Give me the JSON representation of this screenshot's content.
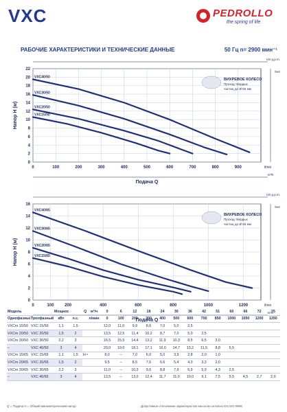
{
  "header": {
    "title": "VXC",
    "logo_text": "PEDROLLO",
    "logo_slogan": "the spring of life"
  },
  "section": {
    "title": "РАБОЧИЕ ХАРАКТЕРИСТИКИ И ТЕХНИЧЕСКИЕ ДАННЫЕ",
    "meta": "50 Гц   n= 2900 мин⁻¹"
  },
  "chart_data": [
    {
      "type": "line",
      "title": "",
      "ylabel": "Напор H (м)",
      "ylabel_right": "feet",
      "xlabel": "Подача Q",
      "x_unit": "l/min",
      "top_axis_unit": "US g.p.m.",
      "bottom_axis_unit": "m³/h",
      "xlim": [
        0,
        1000
      ],
      "ylim": [
        0,
        22
      ],
      "x_ticks": [
        0,
        100,
        200,
        300,
        400,
        500,
        600,
        700,
        800,
        900
      ],
      "y_ticks": [
        0,
        2,
        4,
        6,
        8,
        10,
        12,
        14,
        16,
        18,
        20,
        22
      ],
      "annotation": [
        "ВИХРЕВОЕ КОЛЕСО",
        "Проход твердых",
        "частиц до Ø 50 мм"
      ],
      "series": [
        {
          "name": "VXC40/50",
          "x": [
            0,
            200,
            400,
            600,
            800,
            950
          ],
          "y": [
            19.5,
            17.2,
            14,
            10,
            5.5,
            2.3
          ]
        },
        {
          "name": "VXC30/50",
          "x": [
            0,
            200,
            400,
            600,
            750,
            850
          ],
          "y": [
            15.8,
            13.3,
            10.2,
            6.5,
            3.5,
            1.8
          ]
        },
        {
          "name": "VXC20/50",
          "x": [
            0,
            200,
            400,
            550,
            650,
            700
          ],
          "y": [
            12.4,
            10.2,
            7.4,
            5,
            3,
            2
          ]
        },
        {
          "name": "VXC15/50",
          "x": [
            0,
            150,
            300,
            450,
            550,
            600
          ],
          "y": [
            10.6,
            9,
            6.9,
            4.5,
            2.7,
            2
          ]
        }
      ]
    },
    {
      "type": "line",
      "title": "",
      "ylabel": "Напор H (м)",
      "ylabel_right": "feet",
      "xlabel": "Подача Q",
      "x_unit": "l/min",
      "top_axis_unit": "US g.p.m.",
      "bottom_axis_unit": "m³/h",
      "xlim": [
        0,
        1300
      ],
      "ylim": [
        0,
        16
      ],
      "x_ticks": [
        0,
        100,
        200,
        400,
        600,
        800,
        1000,
        1200
      ],
      "y_ticks": [
        0,
        2,
        4,
        6,
        8,
        10,
        12,
        14,
        16
      ],
      "annotation": [
        "ВИХРЕВОЕ КОЛЕСО",
        "Проход твердых",
        "частиц до Ø 65 мм"
      ],
      "series": [
        {
          "name": "VXC40/65",
          "x": [
            0,
            300,
            600,
            900,
            1100,
            1250
          ],
          "y": [
            14.6,
            11.5,
            8.2,
            5,
            3,
            2
          ]
        },
        {
          "name": "VXC30/65",
          "x": [
            0,
            250,
            500,
            750,
            900,
            1000
          ],
          "y": [
            11.5,
            8.8,
            6,
            3.6,
            2.3,
            1.5
          ]
        },
        {
          "name": "VXC20/65",
          "x": [
            0,
            200,
            400,
            600,
            800,
            900
          ],
          "y": [
            8.7,
            6.9,
            5,
            3.4,
            2.1,
            1.4
          ]
        },
        {
          "name": "VXC15/65",
          "x": [
            0,
            200,
            400,
            600,
            800,
            850
          ],
          "y": [
            7,
            5.6,
            3.9,
            2.5,
            1.4,
            1
          ]
        }
      ]
    }
  ],
  "table": {
    "header_row1": [
      "Модель",
      "",
      "Мощность (P2)",
      "",
      "Q",
      "м³/ч",
      "0",
      "6",
      "12",
      "18",
      "24",
      "30",
      "36",
      "42",
      "51",
      "60",
      "66",
      "72",
      "75"
    ],
    "header_row2": [
      "Однофазный",
      "Трехфазный",
      "кВт",
      "л.с.",
      "",
      "л/мин",
      "0",
      "100",
      "200",
      "300",
      "400",
      "500",
      "600",
      "700",
      "850",
      "1000",
      "1050",
      "1200",
      "1250"
    ],
    "h_label": "H = м",
    "rows": [
      {
        "mono": "VXCm 15/50",
        "tri": "VXC 15/50",
        "kw": "1,1",
        "hp": "1,5",
        "vals": [
          "12,0",
          "11,0",
          "9,9",
          "8,6",
          "7,0",
          "5,0",
          "2,5",
          "",
          "",
          "",
          "",
          "",
          ""
        ]
      },
      {
        "mono": "VXCm 20/50",
        "tri": "VXC 20/50",
        "kw": "1,5",
        "hp": "2",
        "vals": [
          "13,5",
          "12,5",
          "11,4",
          "10,2",
          "8,7",
          "7,0",
          "5,0",
          "2,5",
          "",
          "",
          "",
          "",
          ""
        ]
      },
      {
        "mono": "VXCm 30/50",
        "tri": "VXC 30/50",
        "kw": "2,2",
        "hp": "3",
        "vals": [
          "16,5",
          "15,5",
          "14,4",
          "13,2",
          "11,9",
          "10,3",
          "8,5",
          "6,5",
          "3,0",
          "",
          "",
          "",
          ""
        ]
      },
      {
        "mono": "–",
        "tri": "VXC 40/50",
        "kw": "3",
        "hp": "4",
        "vals": [
          "20,0",
          "19,0",
          "18,1",
          "17,1",
          "16,0",
          "14,7",
          "13,2",
          "11,5",
          "8,8",
          "5,5",
          "",
          "",
          ""
        ]
      },
      {
        "mono": "VXCm 15/65",
        "tri": "VXC 15/65",
        "kw": "1,1",
        "hp": "1,5",
        "vals": [
          "8,0",
          "–",
          "7,0",
          "6,0",
          "5,0",
          "3,9",
          "2,8",
          "2,0",
          "1,0",
          "",
          "",
          "",
          ""
        ]
      },
      {
        "mono": "VXCm 20/65",
        "tri": "VXC 20/65",
        "kw": "1,5",
        "hp": "2",
        "vals": [
          "9,5",
          "–",
          "8,5",
          "7,6",
          "6,6",
          "5,4",
          "4,3",
          "3,3",
          "2,0",
          "",
          "",
          "",
          ""
        ]
      },
      {
        "mono": "VXCm 30/65",
        "tri": "VXC 30/65",
        "kw": "2,2",
        "hp": "3",
        "vals": [
          "11,0",
          "–",
          "10,3",
          "9,6",
          "8,8",
          "7,9",
          "6,9",
          "5,9",
          "4,3",
          "2,5",
          "",
          "",
          ""
        ]
      },
      {
        "mono": "–",
        "tri": "VXC 40/65",
        "kw": "3",
        "hp": "4",
        "vals": [
          "13,5",
          "–",
          "13,0",
          "12,4",
          "11,7",
          "11,0",
          "10,0",
          "9,1",
          "7,5",
          "5,5",
          "4,5",
          "2,7",
          "2,0"
        ]
      }
    ],
    "footnote_left": "Q = Подача   H = Общий манометрический напор",
    "footnote_right": "Допустимое отклонение характеристик насосов согласно ЕN ISO 9906"
  },
  "colors": {
    "curve": "#1f2f79",
    "accent": "#d2232a",
    "grid": "#c7ccdb",
    "axis": "#1c2a5a"
  }
}
